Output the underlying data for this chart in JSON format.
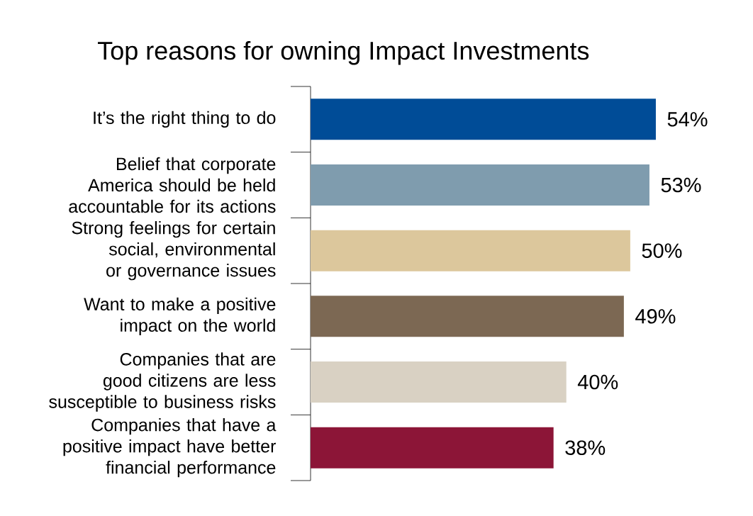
{
  "chart_data": {
    "type": "bar",
    "orientation": "horizontal",
    "title": "Top reasons for owning Impact Investments",
    "categories": [
      "It’s the right thing to do",
      "Belief that corporate America should be held accountable for its actions",
      "Strong feelings for certain social, environmental or governance issues",
      "Want to make a positive impact on the world",
      "Companies that are good citizens are less susceptible to business risks",
      "Companies that have a positive impact have better financial performance"
    ],
    "values": [
      54,
      53,
      50,
      49,
      40,
      38
    ],
    "colors": [
      "#004c97",
      "#7f9cae",
      "#dcc79c",
      "#7c6853",
      "#d9d1c3",
      "#8c1537"
    ],
    "value_labels": [
      "54%",
      "53%",
      "50%",
      "49%",
      "40%",
      "38%"
    ]
  }
}
